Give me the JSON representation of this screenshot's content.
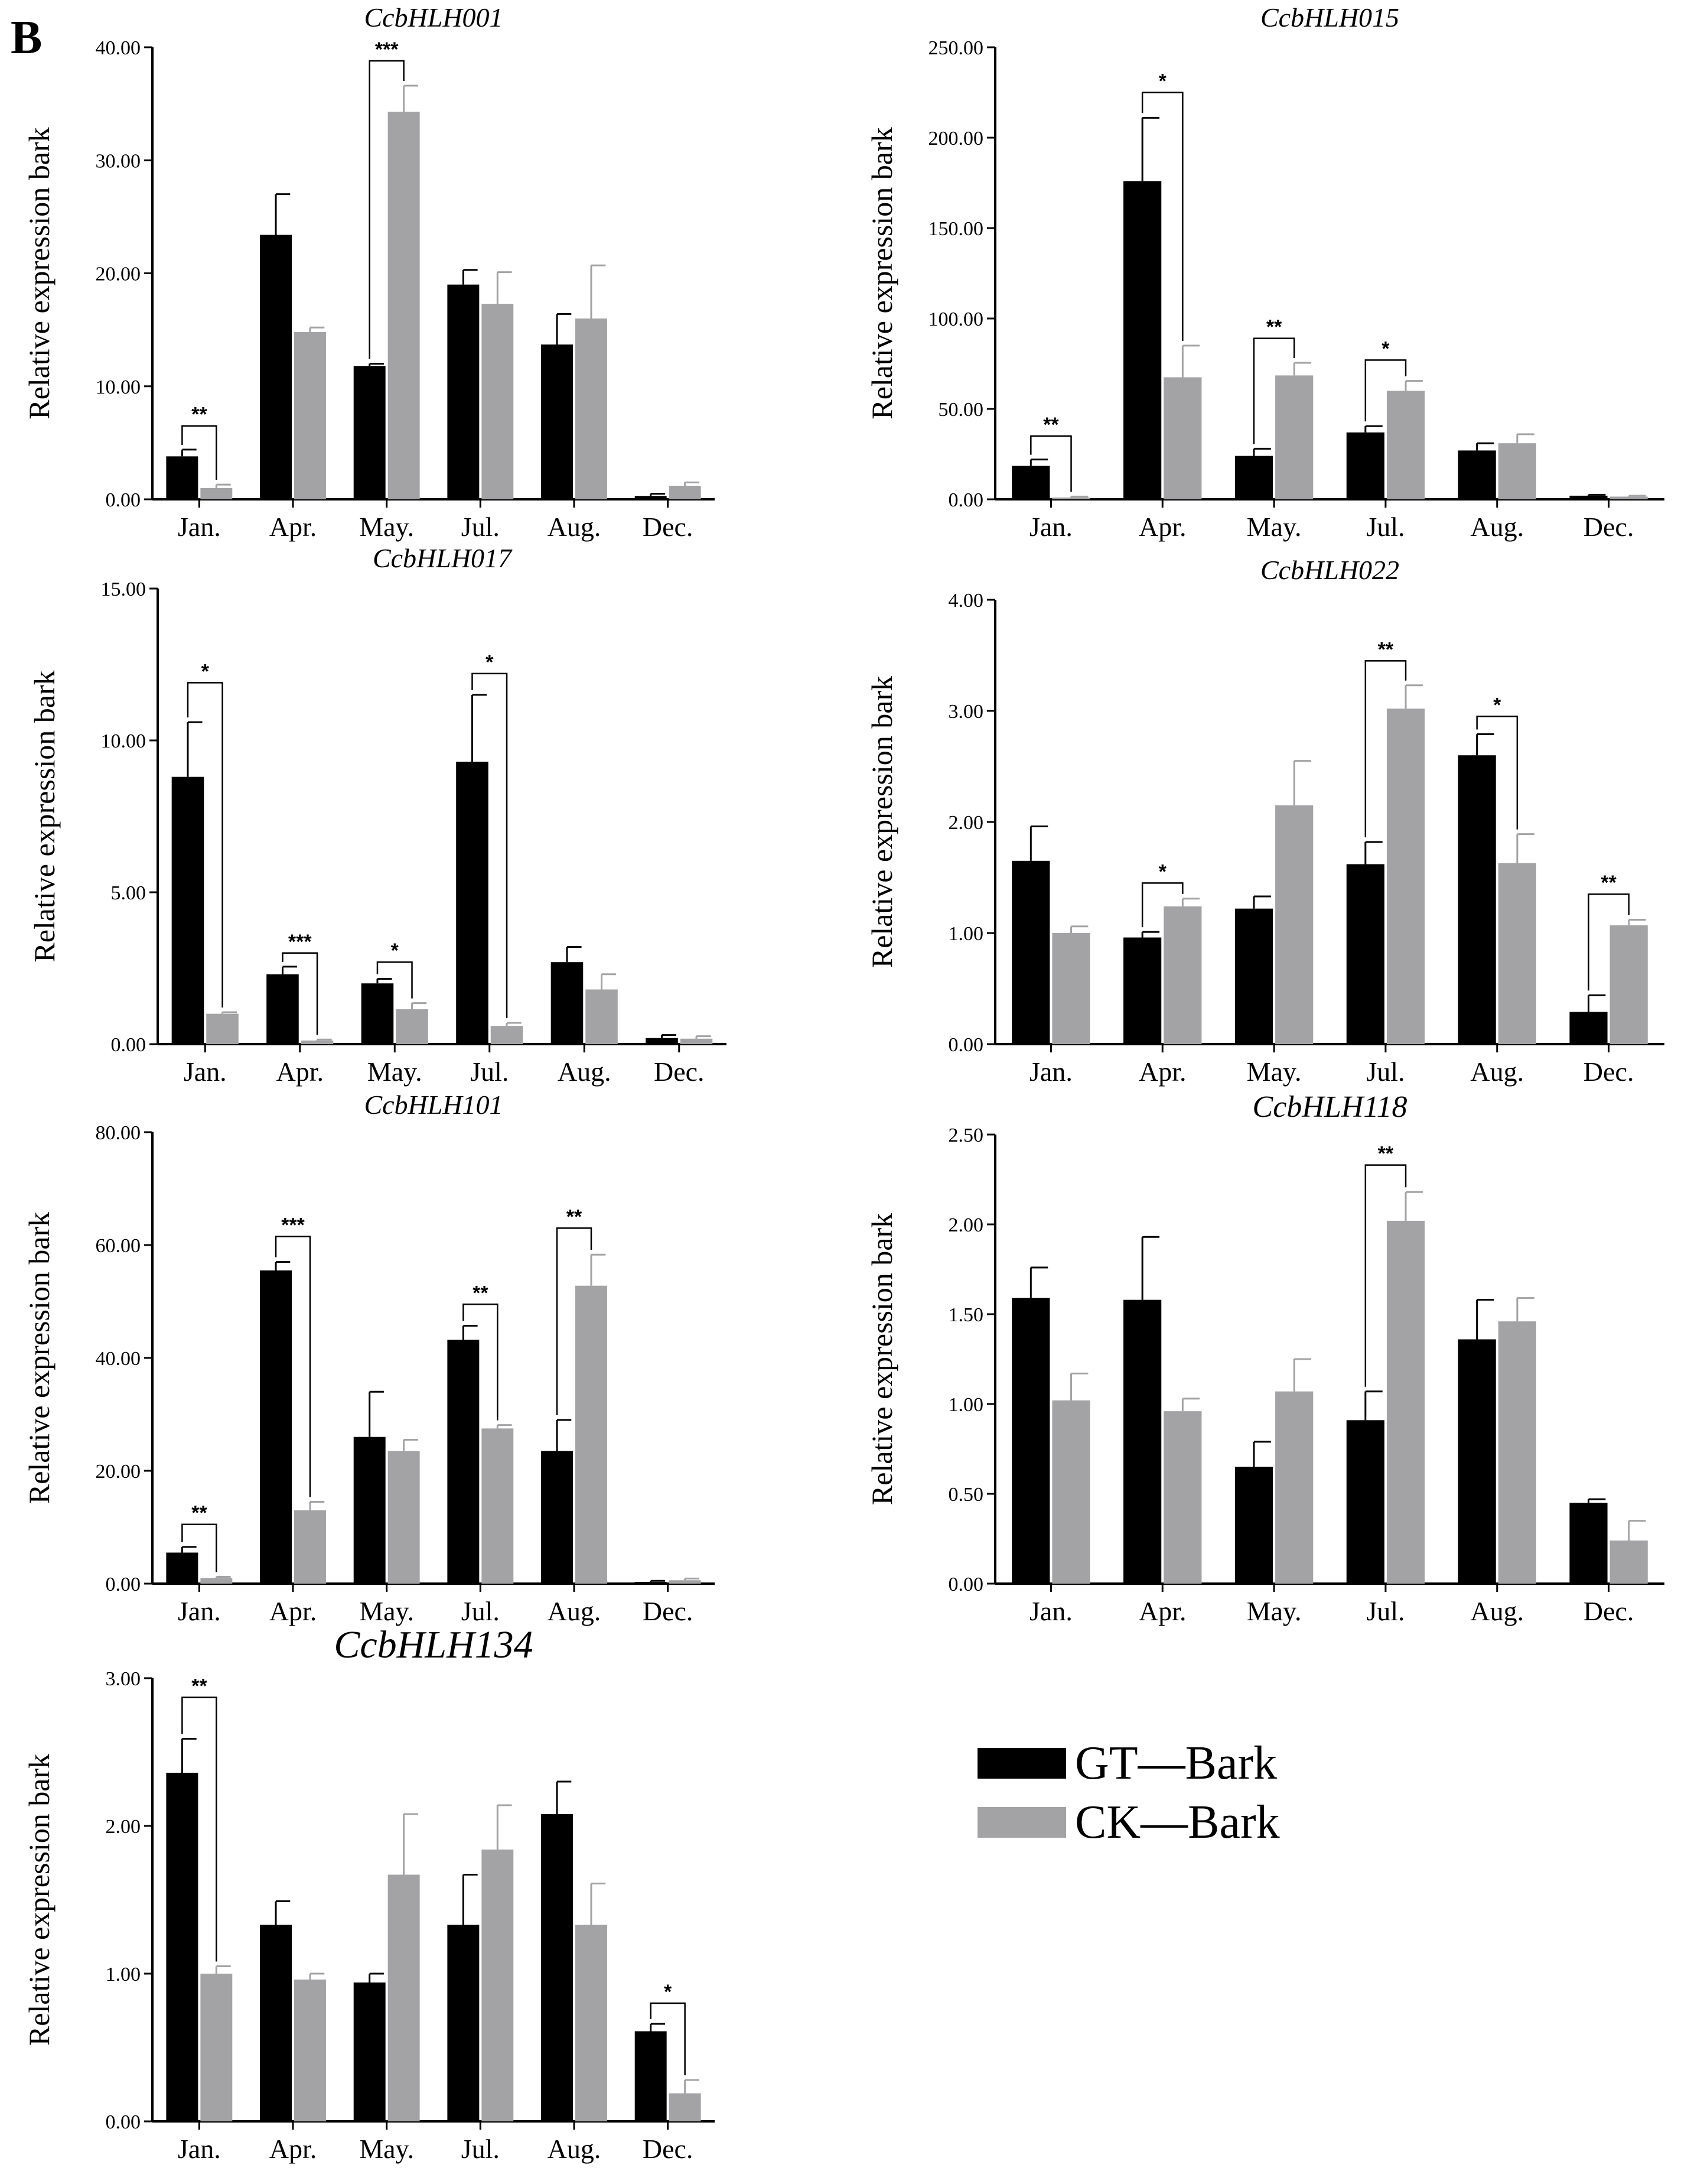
{
  "panel_label": "B",
  "colors": {
    "gt": "#000000",
    "ck": "#a3a3a5",
    "axis": "#000000"
  },
  "legend": {
    "entries": [
      "GT—Bark",
      "CK—Bark"
    ]
  },
  "chart_data": [
    {
      "type": "bar",
      "title": "CcbHLH001",
      "ylabel": "Relative expression bark",
      "categories": [
        "Jan.",
        "Apr.",
        "May.",
        "Jul.",
        "Aug.",
        "Dec."
      ],
      "ylim": [
        0,
        40
      ],
      "yticks": [
        "0.00",
        "10.00",
        "20.00",
        "30.00",
        "40.00"
      ],
      "series": [
        {
          "name": "GT—Bark",
          "values": [
            3.8,
            23.4,
            11.8,
            19.0,
            13.7,
            0.3
          ],
          "errors": [
            0.6,
            3.6,
            0.2,
            1.3,
            2.7,
            0.2
          ]
        },
        {
          "name": "CK—Bark",
          "values": [
            1.0,
            14.8,
            34.3,
            17.3,
            16.0,
            1.2
          ],
          "errors": [
            0.3,
            0.4,
            2.3,
            2.8,
            4.7,
            0.3
          ]
        }
      ],
      "significance": [
        {
          "category": "Jan.",
          "label": "**",
          "at": 6.5
        },
        {
          "category": "May.",
          "label": "***",
          "at": 38.8
        }
      ]
    },
    {
      "type": "bar",
      "title": "CcbHLH015",
      "ylabel": "Relative expression bark",
      "categories": [
        "Jan.",
        "Apr.",
        "May.",
        "Jul.",
        "Aug.",
        "Dec."
      ],
      "ylim": [
        0,
        250
      ],
      "yticks": [
        "0.00",
        "50.00",
        "100.00",
        "150.00",
        "200.00",
        "250.00"
      ],
      "series": [
        {
          "name": "GT—Bark",
          "values": [
            18.5,
            176.0,
            24.0,
            37.0,
            27.0,
            2.0
          ],
          "errors": [
            3.5,
            35.0,
            4.0,
            3.5,
            4.0,
            0.5
          ]
        },
        {
          "name": "CK—Bark",
          "values": [
            1.0,
            67.5,
            68.5,
            60.0,
            31.0,
            1.5
          ],
          "errors": [
            0.5,
            17.5,
            7.0,
            5.5,
            5.0,
            0.5
          ]
        }
      ],
      "significance": [
        {
          "category": "Jan.",
          "label": "**",
          "at": 35
        },
        {
          "category": "Apr.",
          "label": "*",
          "at": 225
        },
        {
          "category": "May.",
          "label": "**",
          "at": 89
        },
        {
          "category": "Jul.",
          "label": "*",
          "at": 77
        }
      ]
    },
    {
      "type": "bar",
      "title": "CcbHLH017",
      "ylabel": "Relative expression bark",
      "categories": [
        "Jan.",
        "Apr.",
        "May.",
        "Jul.",
        "Aug.",
        "Dec."
      ],
      "ylim": [
        0,
        15
      ],
      "yticks": [
        "0.00",
        "5.00",
        "10.00",
        "15.00"
      ],
      "series": [
        {
          "name": "GT—Bark",
          "values": [
            8.8,
            2.3,
            2.0,
            9.3,
            2.7,
            0.2
          ],
          "errors": [
            1.8,
            0.25,
            0.15,
            2.2,
            0.5,
            0.1
          ]
        },
        {
          "name": "CK—Bark",
          "values": [
            1.0,
            0.12,
            1.15,
            0.6,
            1.8,
            0.18
          ],
          "errors": [
            0.05,
            0.03,
            0.2,
            0.1,
            0.5,
            0.08
          ]
        }
      ],
      "significance": [
        {
          "category": "Jan.",
          "label": "*",
          "at": 11.9
        },
        {
          "category": "Apr.",
          "label": "***",
          "at": 3.0
        },
        {
          "category": "May.",
          "label": "*",
          "at": 2.7
        },
        {
          "category": "Jul.",
          "label": "*",
          "at": 12.2
        }
      ]
    },
    {
      "type": "bar",
      "title": "CcbHLH022",
      "ylabel": "Relative expression bark",
      "categories": [
        "Jan.",
        "Apr.",
        "May.",
        "Jul.",
        "Aug.",
        "Dec."
      ],
      "ylim": [
        0,
        4
      ],
      "yticks": [
        "0.00",
        "1.00",
        "2.00",
        "3.00",
        "4.00"
      ],
      "series": [
        {
          "name": "GT—Bark",
          "values": [
            1.65,
            0.96,
            1.22,
            1.62,
            2.6,
            0.29
          ],
          "errors": [
            0.31,
            0.05,
            0.11,
            0.2,
            0.19,
            0.15
          ]
        },
        {
          "name": "CK—Bark",
          "values": [
            1.0,
            1.24,
            2.15,
            3.02,
            1.63,
            1.07
          ],
          "errors": [
            0.06,
            0.07,
            0.4,
            0.21,
            0.26,
            0.05
          ]
        }
      ],
      "significance": [
        {
          "category": "Apr.",
          "label": "*",
          "at": 1.45
        },
        {
          "category": "Jul.",
          "label": "**",
          "at": 3.45
        },
        {
          "category": "Aug.",
          "label": "*",
          "at": 2.95
        },
        {
          "category": "Dec.",
          "label": "**",
          "at": 1.35
        }
      ]
    },
    {
      "type": "bar",
      "title": "CcbHLH101",
      "ylabel": "Relative expression bark",
      "categories": [
        "Jan.",
        "Apr.",
        "May.",
        "Jul.",
        "Aug.",
        "Dec."
      ],
      "ylim": [
        0,
        80
      ],
      "yticks": [
        "0.00",
        "20.00",
        "40.00",
        "60.00",
        "80.00"
      ],
      "series": [
        {
          "name": "GT—Bark",
          "values": [
            5.5,
            55.5,
            26.0,
            43.2,
            23.5,
            0.3
          ],
          "errors": [
            1.0,
            1.5,
            8.0,
            2.5,
            5.5,
            0.2
          ]
        },
        {
          "name": "CK—Bark",
          "values": [
            1.0,
            13.0,
            23.5,
            27.5,
            52.8,
            0.6
          ],
          "errors": [
            0.2,
            1.5,
            2.0,
            0.6,
            5.5,
            0.3
          ]
        }
      ],
      "significance": [
        {
          "category": "Jan.",
          "label": "**",
          "at": 10.5
        },
        {
          "category": "Apr.",
          "label": "***",
          "at": 61.5
        },
        {
          "category": "Jul.",
          "label": "**",
          "at": 49.5
        },
        {
          "category": "Aug.",
          "label": "**",
          "at": 63.0
        }
      ]
    },
    {
      "type": "bar",
      "title": "CcbHLH118",
      "ylabel": "Relative expression bark",
      "categories": [
        "Jan.",
        "Apr.",
        "May.",
        "Jul.",
        "Aug.",
        "Dec."
      ],
      "ylim": [
        0,
        2.5
      ],
      "yticks": [
        "0.00",
        "0.50",
        "1.00",
        "1.50",
        "2.00",
        "2.50"
      ],
      "series": [
        {
          "name": "GT—Bark",
          "values": [
            1.59,
            1.58,
            0.65,
            0.91,
            1.36,
            0.45
          ],
          "errors": [
            0.17,
            0.35,
            0.14,
            0.16,
            0.22,
            0.02
          ]
        },
        {
          "name": "CK—Bark",
          "values": [
            1.02,
            0.96,
            1.07,
            2.02,
            1.46,
            0.24
          ],
          "errors": [
            0.15,
            0.07,
            0.18,
            0.16,
            0.13,
            0.11
          ]
        }
      ],
      "significance": [
        {
          "category": "Jul.",
          "label": "**",
          "at": 2.33
        }
      ]
    },
    {
      "type": "bar",
      "title": "CcbHLH134",
      "ylabel": "Relative expression bark",
      "categories": [
        "Jan.",
        "Apr.",
        "May.",
        "Jul.",
        "Aug.",
        "Dec."
      ],
      "ylim": [
        0,
        3
      ],
      "yticks": [
        "0.00",
        "1.00",
        "2.00",
        "3.00"
      ],
      "series": [
        {
          "name": "GT—Bark",
          "values": [
            2.36,
            1.33,
            0.94,
            1.33,
            2.08,
            0.61
          ],
          "errors": [
            0.23,
            0.16,
            0.06,
            0.34,
            0.22,
            0.05
          ]
        },
        {
          "name": "CK—Bark",
          "values": [
            1.0,
            0.96,
            1.67,
            1.84,
            1.33,
            0.19
          ],
          "errors": [
            0.05,
            0.04,
            0.41,
            0.3,
            0.28,
            0.09
          ]
        }
      ],
      "significance": [
        {
          "category": "Jan.",
          "label": "**",
          "at": 2.87
        },
        {
          "category": "Dec.",
          "label": "*",
          "at": 0.8
        }
      ]
    }
  ]
}
